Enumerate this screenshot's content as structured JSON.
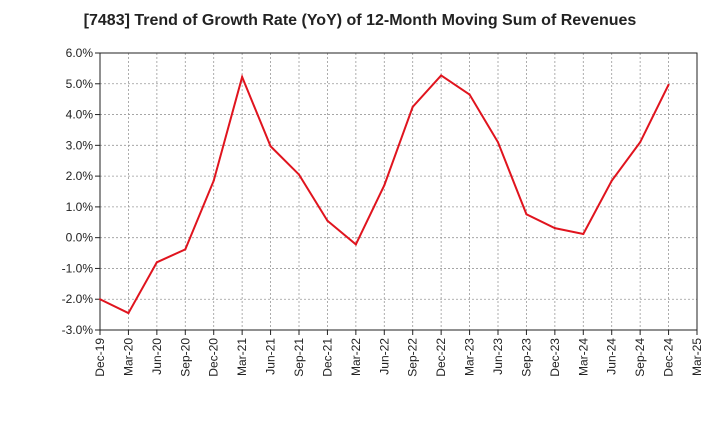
{
  "chart_data": {
    "type": "line",
    "title": "[7483]  Trend of Growth Rate (YoY) of 12-Month Moving Sum of Revenues",
    "xlabel": "",
    "ylabel": "",
    "categories": [
      "Dec-19",
      "Mar-20",
      "Jun-20",
      "Sep-20",
      "Dec-20",
      "Mar-21",
      "Jun-21",
      "Sep-21",
      "Dec-21",
      "Mar-22",
      "Jun-22",
      "Sep-22",
      "Dec-22",
      "Mar-23",
      "Jun-23",
      "Sep-23",
      "Dec-23",
      "Mar-24",
      "Jun-24",
      "Sep-24",
      "Dec-24",
      "Mar-25"
    ],
    "series": [
      {
        "color": "#e0141e",
        "values": [
          -2.0,
          -2.45,
          -0.8,
          -0.38,
          1.85,
          5.22,
          2.97,
          2.05,
          0.55,
          -0.22,
          1.7,
          4.25,
          5.27,
          4.65,
          3.1,
          0.76,
          0.31,
          0.12,
          1.85,
          3.1,
          4.97,
          null
        ]
      }
    ],
    "ylim": [
      -3.0,
      6.0
    ],
    "yticks": [
      "6.0%",
      "5.0%",
      "4.0%",
      "3.0%",
      "2.0%",
      "1.0%",
      "0.0%",
      "-1.0%",
      "-2.0%",
      "-3.0%"
    ],
    "grid": true,
    "legend": "none"
  }
}
